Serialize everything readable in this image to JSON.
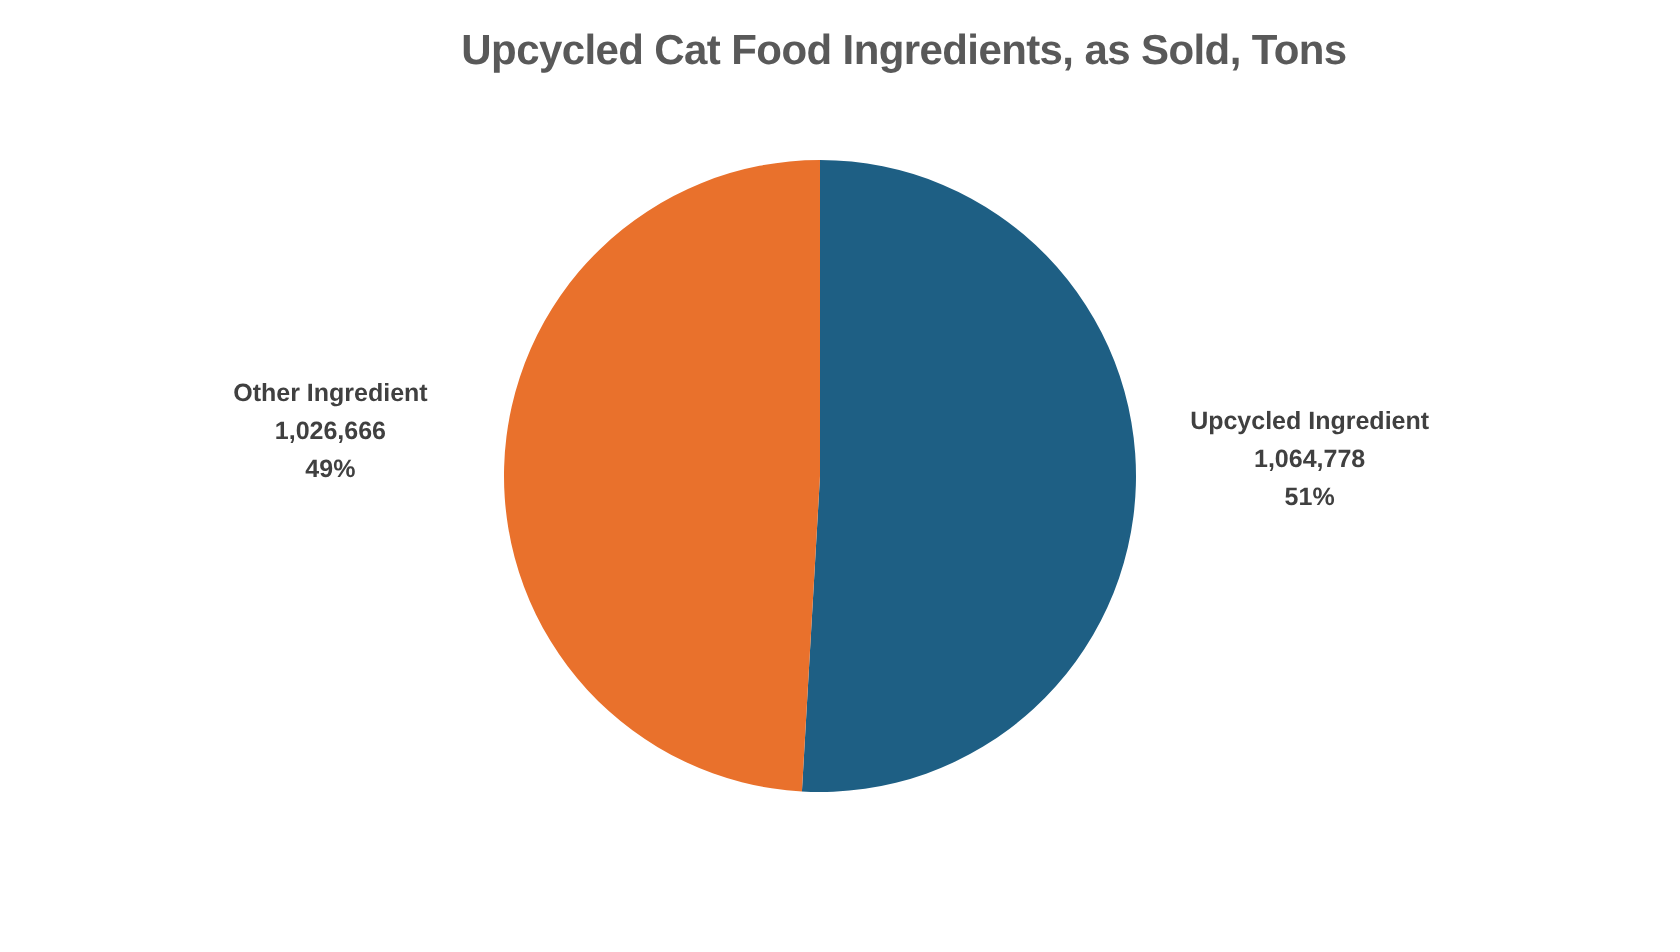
{
  "chart_data": {
    "type": "pie",
    "title": "Upcycled Cat Food Ingredients, as Sold, Tons",
    "categories": [
      "Upcycled Ingredient",
      "Other Ingredient"
    ],
    "values": [
      1064778,
      1026666
    ],
    "colors": [
      "#1e5f84",
      "#e9712c"
    ],
    "value_labels": [
      "1,064,778\n51%",
      "1,026,666\n49%"
    ]
  }
}
